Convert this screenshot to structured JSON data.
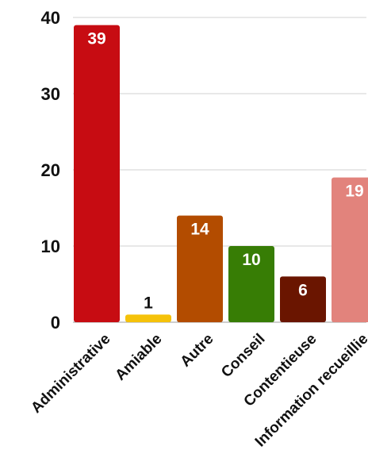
{
  "chart_data": {
    "type": "bar",
    "categories": [
      "Administrative",
      "Amiable",
      "Autre",
      "Conseil",
      "Contentieuse",
      "Information recueillie"
    ],
    "values": [
      39,
      1,
      14,
      10,
      6,
      19
    ],
    "colors": [
      "#c70c12",
      "#f5c20a",
      "#b34c00",
      "#377d05",
      "#6a1500",
      "#e2837c"
    ],
    "data_labels": [
      "39",
      "1",
      "14",
      "10",
      "6",
      "19"
    ],
    "data_label_colors": [
      "#ffffff",
      "#111111",
      "#ffffff",
      "#ffffff",
      "#ffffff",
      "#ffffff"
    ],
    "data_label_inside": [
      true,
      false,
      true,
      true,
      true,
      true
    ],
    "yticks": [
      0,
      10,
      20,
      30,
      40
    ],
    "ytick_labels": [
      "0",
      "10",
      "20",
      "30",
      "40"
    ],
    "ylim": [
      0,
      40
    ],
    "grid": true,
    "title": "",
    "xlabel": "",
    "ylabel": ""
  }
}
